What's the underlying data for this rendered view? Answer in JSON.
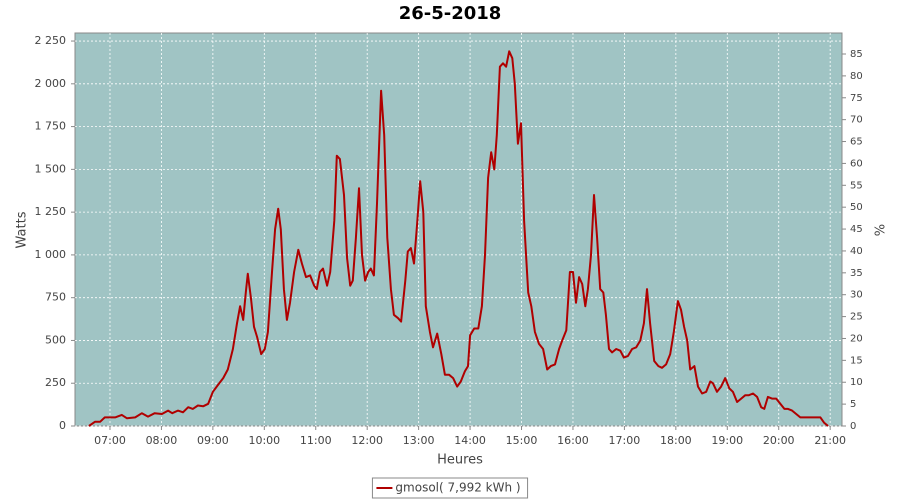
{
  "chart_data": {
    "type": "line",
    "title": "26-5-2018",
    "x_label": "Heures",
    "y_label": "Watts",
    "y2_label": "%",
    "xlim": [
      6.32,
      21.23
    ],
    "xticks": [
      {
        "value": 7,
        "label": "07:00"
      },
      {
        "value": 8,
        "label": "08:00"
      },
      {
        "value": 9,
        "label": "09:00"
      },
      {
        "value": 10,
        "label": "10:00"
      },
      {
        "value": 11,
        "label": "11:00"
      },
      {
        "value": 12,
        "label": "12:00"
      },
      {
        "value": 13,
        "label": "13:00"
      },
      {
        "value": 14,
        "label": "14:00"
      },
      {
        "value": 15,
        "label": "15:00"
      },
      {
        "value": 16,
        "label": "16:00"
      },
      {
        "value": 17,
        "label": "17:00"
      },
      {
        "value": 18,
        "label": "18:00"
      },
      {
        "value": 19,
        "label": "19:00"
      },
      {
        "value": 20,
        "label": "20:00"
      },
      {
        "value": 21,
        "label": "21:00"
      }
    ],
    "ylim": [
      0,
      2297
    ],
    "yticks": [
      0,
      250,
      500,
      750,
      {
        "value": 1000,
        "label": "1 000"
      },
      {
        "value": 1250,
        "label": "1 250"
      },
      {
        "value": 1500,
        "label": "1 500"
      },
      {
        "value": 1750,
        "label": "1 750"
      },
      {
        "value": 2000,
        "label": "2 000"
      },
      {
        "value": 2250,
        "label": "2 250"
      }
    ],
    "y2lim": [
      0,
      89.8
    ],
    "y2ticks": [
      0,
      5,
      10,
      15,
      20,
      25,
      30,
      35,
      40,
      45,
      50,
      55,
      60,
      65,
      70,
      75,
      80,
      85
    ],
    "grid": true,
    "legend": "bottom",
    "background": "#a0c4c4",
    "x": [
      6.59,
      6.71,
      6.81,
      6.9,
      7.1,
      7.23,
      7.33,
      7.49,
      7.62,
      7.74,
      7.87,
      8.01,
      8.13,
      8.21,
      8.32,
      8.42,
      8.52,
      8.61,
      8.71,
      8.81,
      8.91,
      9.0,
      9.1,
      9.2,
      9.29,
      9.39,
      9.47,
      9.53,
      9.59,
      9.64,
      9.68,
      9.74,
      9.8,
      9.86,
      9.94,
      10.01,
      10.07,
      10.15,
      10.21,
      10.27,
      10.32,
      10.38,
      10.44,
      10.5,
      10.58,
      10.66,
      10.73,
      10.81,
      10.89,
      10.97,
      11.02,
      11.08,
      11.14,
      11.22,
      11.28,
      11.36,
      11.41,
      11.47,
      11.55,
      11.61,
      11.67,
      11.72,
      11.78,
      11.84,
      11.9,
      11.96,
      12.02,
      12.07,
      12.13,
      12.19,
      12.27,
      12.33,
      12.39,
      12.46,
      12.52,
      12.6,
      12.66,
      12.74,
      12.79,
      12.85,
      12.91,
      12.97,
      13.03,
      13.09,
      13.14,
      13.22,
      13.28,
      13.36,
      13.44,
      13.51,
      13.59,
      13.67,
      13.75,
      13.82,
      13.9,
      13.96,
      14.0,
      14.08,
      14.16,
      14.23,
      14.29,
      14.35,
      14.41,
      14.47,
      14.52,
      14.58,
      14.64,
      14.7,
      14.76,
      14.82,
      14.87,
      14.93,
      14.99,
      15.05,
      15.13,
      15.19,
      15.26,
      15.34,
      15.42,
      15.5,
      15.57,
      15.65,
      15.73,
      15.79,
      15.87,
      15.94,
      16.0,
      16.06,
      16.12,
      16.18,
      16.24,
      16.29,
      16.35,
      16.41,
      16.47,
      16.53,
      16.59,
      16.64,
      16.7,
      16.76,
      16.84,
      16.92,
      16.99,
      17.07,
      17.15,
      17.23,
      17.31,
      17.38,
      17.44,
      17.5,
      17.58,
      17.66,
      17.73,
      17.81,
      17.89,
      17.96,
      18.04,
      18.1,
      18.16,
      18.22,
      18.28,
      18.36,
      18.43,
      18.51,
      18.59,
      18.67,
      18.72,
      18.8,
      18.88,
      18.96,
      19.04,
      19.11,
      19.19,
      19.27,
      19.35,
      19.42,
      19.5,
      19.58,
      19.66,
      19.72,
      19.79,
      19.87,
      19.95,
      20.03,
      20.11,
      20.18,
      20.26,
      20.34,
      20.42,
      20.61,
      20.81,
      20.88,
      20.96
    ],
    "series": [
      {
        "name": "gmosol( 7,992 kWh )",
        "color": "#b00000",
        "values": [
          0,
          25,
          25,
          50,
          50,
          65,
          45,
          50,
          75,
          55,
          75,
          70,
          90,
          75,
          90,
          80,
          110,
          100,
          120,
          115,
          130,
          200,
          240,
          280,
          330,
          450,
          600,
          700,
          620,
          780,
          890,
          750,
          580,
          520,
          420,
          450,
          550,
          900,
          1150,
          1270,
          1150,
          800,
          620,
          720,
          900,
          1030,
          950,
          870,
          880,
          820,
          800,
          900,
          920,
          820,
          900,
          1200,
          1580,
          1560,
          1350,
          980,
          820,
          850,
          1100,
          1390,
          1000,
          850,
          900,
          920,
          880,
          1300,
          1960,
          1700,
          1100,
          800,
          650,
          630,
          610,
          850,
          1020,
          1040,
          950,
          1180,
          1430,
          1250,
          700,
          550,
          460,
          540,
          420,
          300,
          300,
          280,
          230,
          260,
          320,
          350,
          530,
          570,
          570,
          700,
          1000,
          1450,
          1600,
          1500,
          1700,
          2100,
          2120,
          2100,
          2190,
          2150,
          2000,
          1650,
          1770,
          1200,
          780,
          700,
          550,
          480,
          450,
          330,
          350,
          360,
          450,
          500,
          560,
          900,
          900,
          720,
          870,
          830,
          700,
          800,
          1000,
          1350,
          1100,
          800,
          780,
          650,
          450,
          430,
          450,
          440,
          400,
          410,
          450,
          460,
          500,
          600,
          800,
          600,
          380,
          350,
          340,
          360,
          420,
          550,
          730,
          680,
          580,
          500,
          330,
          350,
          230,
          190,
          200,
          260,
          250,
          200,
          230,
          280,
          220,
          200,
          140,
          160,
          180,
          180,
          190,
          170,
          110,
          100,
          170,
          160,
          160,
          130,
          100,
          100,
          90,
          70,
          50,
          50,
          50,
          20,
          0
        ]
      }
    ]
  }
}
